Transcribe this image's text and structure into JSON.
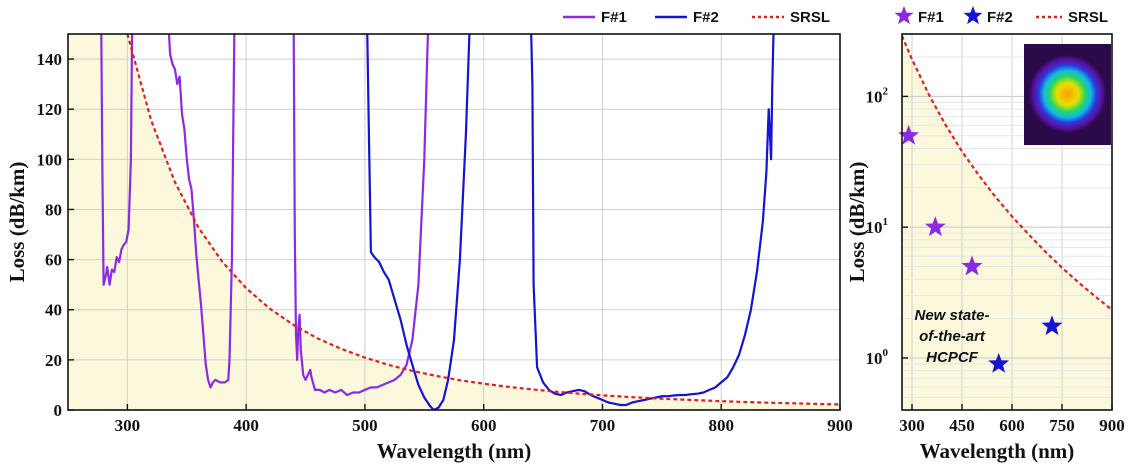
{
  "chart_data": [
    {
      "type": "line",
      "xlabel": "Wavelength (nm)",
      "ylabel": "Loss (dB/km)",
      "xlim": [
        250,
        900
      ],
      "ylim": [
        0,
        150
      ],
      "xticks": [
        300,
        400,
        500,
        600,
        700,
        800,
        900
      ],
      "yticks": [
        0,
        20,
        40,
        60,
        80,
        100,
        120,
        140
      ],
      "grid": true,
      "legend_position": "top-right",
      "colors": {
        "F#1": "#8a2be2",
        "F#2": "#1414d4",
        "SRSL": "#e02020",
        "shade": "#fbf8dc"
      },
      "series": [
        {
          "name": "F#1",
          "color": "#8a2be2",
          "segments": [
            [
              [
                278,
                150
              ],
              [
                279,
                95
              ],
              [
                280,
                50
              ],
              [
                282,
                54
              ],
              [
                283,
                57
              ],
              [
                285,
                50
              ],
              [
                287,
                56
              ],
              [
                289,
                55
              ],
              [
                291,
                61
              ],
              [
                293,
                59
              ],
              [
                295,
                64
              ],
              [
                297,
                66
              ],
              [
                299,
                67
              ],
              [
                301,
                72
              ],
              [
                303,
                100
              ],
              [
                304,
                150
              ]
            ],
            [
              [
                335,
                150
              ],
              [
                336,
                142
              ],
              [
                338,
                138
              ],
              [
                340,
                136
              ],
              [
                342,
                130
              ],
              [
                344,
                133
              ],
              [
                346,
                118
              ],
              [
                348,
                112
              ],
              [
                350,
                100
              ],
              [
                352,
                92
              ],
              [
                354,
                88
              ],
              [
                356,
                76
              ],
              [
                358,
                62
              ],
              [
                360,
                52
              ],
              [
                362,
                42
              ],
              [
                364,
                30
              ],
              [
                366,
                18
              ],
              [
                368,
                12
              ],
              [
                370,
                9
              ],
              [
                372,
                11
              ],
              [
                374,
                12
              ],
              [
                378,
                11
              ],
              [
                382,
                11
              ],
              [
                385,
                12
              ],
              [
                386,
                20
              ],
              [
                388,
                60
              ],
              [
                390,
                150
              ]
            ],
            [
              [
                440,
                150
              ],
              [
                441,
                70
              ],
              [
                442,
                30
              ],
              [
                443,
                20
              ],
              [
                444,
                33
              ],
              [
                445,
                38
              ],
              [
                446,
                24
              ],
              [
                448,
                14
              ],
              [
                450,
                12
              ],
              [
                452,
                14
              ],
              [
                454,
                16
              ],
              [
                455,
                13
              ],
              [
                458,
                8
              ],
              [
                462,
                8
              ],
              [
                466,
                7
              ],
              [
                470,
                8
              ],
              [
                475,
                7
              ],
              [
                480,
                8
              ],
              [
                485,
                6
              ],
              [
                490,
                7
              ],
              [
                495,
                7
              ],
              [
                500,
                8
              ],
              [
                505,
                9
              ],
              [
                510,
                9
              ],
              [
                515,
                10
              ],
              [
                520,
                11
              ],
              [
                525,
                12
              ],
              [
                530,
                14
              ],
              [
                535,
                18
              ],
              [
                540,
                28
              ],
              [
                545,
                50
              ],
              [
                550,
                100
              ],
              [
                553,
                150
              ]
            ]
          ]
        },
        {
          "name": "F#2",
          "color": "#1414d4",
          "segments": [
            [
              [
                502,
                150
              ],
              [
                503,
                120
              ],
              [
                505,
                63
              ],
              [
                508,
                61
              ],
              [
                512,
                59
              ],
              [
                516,
                55
              ],
              [
                520,
                52
              ],
              [
                525,
                44
              ],
              [
                530,
                36
              ],
              [
                535,
                26
              ],
              [
                540,
                18
              ],
              [
                545,
                10
              ],
              [
                550,
                5
              ],
              [
                555,
                1.5
              ],
              [
                558,
                0
              ],
              [
                562,
                1
              ],
              [
                566,
                4
              ],
              [
                570,
                12
              ],
              [
                575,
                28
              ],
              [
                580,
                60
              ],
              [
                585,
                110
              ],
              [
                588,
                150
              ]
            ],
            [
              [
                640,
                150
              ],
              [
                641,
                130
              ],
              [
                642,
                50
              ],
              [
                645,
                17
              ],
              [
                650,
                11
              ],
              [
                655,
                8
              ],
              [
                660,
                6.5
              ],
              [
                665,
                6
              ],
              [
                670,
                7
              ],
              [
                675,
                7.5
              ],
              [
                680,
                8
              ],
              [
                685,
                7.5
              ],
              [
                690,
                6
              ],
              [
                695,
                5
              ],
              [
                700,
                4
              ],
              [
                705,
                3
              ],
              [
                710,
                2.5
              ],
              [
                715,
                2
              ],
              [
                720,
                2
              ],
              [
                725,
                3
              ],
              [
                730,
                3.5
              ],
              [
                735,
                4
              ],
              [
                740,
                4.5
              ],
              [
                745,
                5
              ],
              [
                750,
                5.5
              ],
              [
                755,
                5.5
              ],
              [
                760,
                5.8
              ],
              [
                765,
                6
              ],
              [
                770,
                6
              ],
              [
                775,
                6.3
              ],
              [
                780,
                6.5
              ],
              [
                785,
                7
              ],
              [
                790,
                8
              ],
              [
                795,
                9
              ],
              [
                800,
                11
              ],
              [
                805,
                13
              ],
              [
                810,
                17
              ],
              [
                815,
                22
              ],
              [
                820,
                30
              ],
              [
                825,
                40
              ],
              [
                830,
                55
              ],
              [
                835,
                75
              ],
              [
                838,
                95
              ],
              [
                840,
                120
              ],
              [
                842,
                100
              ],
              [
                843,
                130
              ],
              [
                844,
                150
              ]
            ]
          ]
        },
        {
          "name": "SRSL",
          "color": "#e02020",
          "style": "dotted",
          "x": [
            300,
            320,
            340,
            360,
            380,
            400,
            420,
            440,
            460,
            480,
            500,
            520,
            540,
            560,
            580,
            600,
            620,
            640,
            660,
            680,
            700,
            720,
            740,
            760,
            780,
            800,
            820,
            840,
            860,
            880,
            900
          ],
          "y": [
            150,
            115.6,
            90.9,
            72.7,
            59.1,
            48.6,
            40.4,
            33.9,
            28.6,
            24.4,
            20.9,
            18.0,
            15.6,
            13.6,
            11.9,
            10.5,
            9.28,
            8.24,
            7.34,
            6.56,
            5.87,
            5.28,
            4.75,
            4.29,
            3.89,
            3.53,
            3.21,
            2.93,
            2.67,
            2.44,
            2.24
          ]
        }
      ]
    },
    {
      "type": "scatter",
      "xlabel": "Wavelength (nm)",
      "ylabel": "Loss (dB/km)",
      "xlim": [
        270,
        900
      ],
      "ylim": [
        0.4,
        300
      ],
      "yscale": "log",
      "xticks": [
        300,
        450,
        600,
        750,
        900
      ],
      "yticks": [
        1,
        10,
        100
      ],
      "ytick_labels": [
        "10",
        "10",
        "10"
      ],
      "ytick_superscripts": [
        "0",
        "1",
        "2"
      ],
      "grid": true,
      "legend_position": "top",
      "series": [
        {
          "name": "F#1",
          "color": "#8a2be2",
          "marker": "star",
          "x": [
            290,
            370,
            480
          ],
          "y": [
            50,
            10,
            5
          ]
        },
        {
          "name": "F#2",
          "color": "#1414d4",
          "marker": "star",
          "x": [
            560,
            720
          ],
          "y": [
            0.9,
            1.75
          ]
        },
        {
          "name": "SRSL",
          "color": "#e02020",
          "style": "dotted",
          "x": [
            270,
            300,
            350,
            400,
            450,
            500,
            550,
            600,
            650,
            700,
            750,
            800,
            850,
            900
          ],
          "y": [
            290,
            192,
            104,
            61,
            38,
            25,
            17.1,
            12.1,
            8.8,
            6.5,
            4.9,
            3.77,
            2.95,
            2.33
          ]
        }
      ],
      "annotation": [
        "New state-",
        "of-the-art",
        "HCPCF"
      ]
    }
  ]
}
